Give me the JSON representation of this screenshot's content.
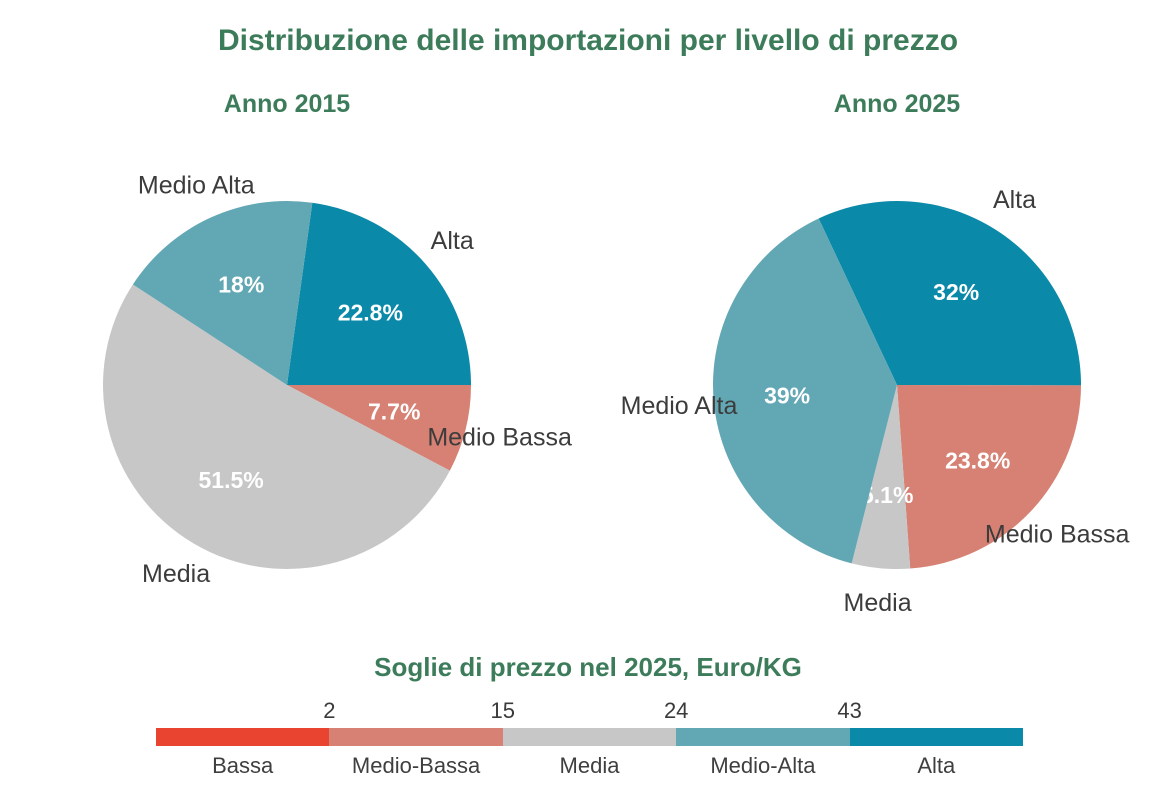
{
  "page_title": "Distribuzione delle importazioni per livello di prezzo",
  "colors": {
    "title_green": "#3D7C5A",
    "label_dark": "#3C3C3C",
    "pct_white": "#FFFFFF",
    "bassa": "#E84430",
    "medio_bassa": "#D68173",
    "media": "#C7C7C7",
    "medio_alta": "#62A7B4",
    "alta": "#0A89A8"
  },
  "chart_data": [
    {
      "type": "pie",
      "title": "Anno 2015",
      "unit": "%",
      "direction": "clockwise",
      "start_angle_cw_deg": 7.92,
      "slices": [
        {
          "label": "Alta",
          "value": 22.8,
          "display": "22.8%",
          "color_key": "alta"
        },
        {
          "label": "Medio Bassa",
          "value": 7.7,
          "display": "7.7%",
          "color_key": "medio_bassa"
        },
        {
          "label": "Media",
          "value": 51.5,
          "display": "51.5%",
          "color_key": "media"
        },
        {
          "label": "Medio Alta",
          "value": 18,
          "display": "18%",
          "color_key": "medio_alta"
        }
      ]
    },
    {
      "type": "pie",
      "title": "Anno 2025",
      "unit": "%",
      "direction": "clockwise",
      "start_angle_cw_deg": -25.2,
      "slices": [
        {
          "label": "Alta",
          "value": 32,
          "display": "32%",
          "color_key": "alta"
        },
        {
          "label": "Medio Bassa",
          "value": 23.8,
          "display": "23.8%",
          "color_key": "medio_bassa"
        },
        {
          "label": "Media",
          "value": 5.1,
          "display": "5.1%",
          "color_key": "media"
        },
        {
          "label": "Medio Alta",
          "value": 39,
          "display": "39%",
          "color_key": "medio_alta"
        }
      ]
    },
    {
      "type": "color-scale",
      "title": "Soglie di prezzo nel 2025, Euro/KG",
      "categories": [
        "Bassa",
        "Medio-Bassa",
        "Media",
        "Medio-Alta",
        "Alta"
      ],
      "color_keys": [
        "bassa",
        "medio_bassa",
        "media",
        "medio_alta",
        "alta"
      ],
      "thresholds": [
        "2",
        "15",
        "24",
        "43"
      ],
      "legend_position": "bottom"
    }
  ]
}
